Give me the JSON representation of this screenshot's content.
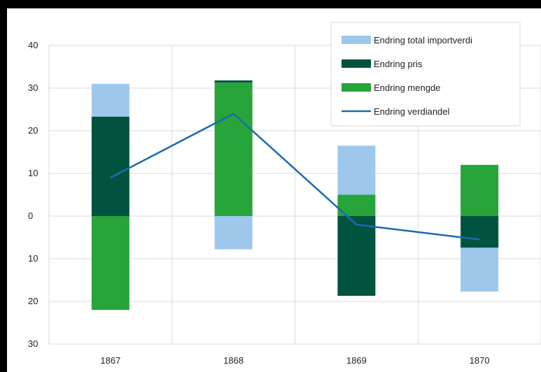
{
  "chart_data": {
    "type": "bar",
    "stacked": true,
    "categories": [
      "1867",
      "1868",
      "1869",
      "1870"
    ],
    "ylim": [
      -30,
      40
    ],
    "y_ticks": [
      40,
      30,
      20,
      10,
      0,
      -10,
      -20,
      -30
    ],
    "y_tick_labels": [
      "40",
      "30",
      "20",
      "10",
      "0",
      "10",
      "20",
      "30"
    ],
    "grid": true,
    "legend_position": "top-right",
    "series": [
      {
        "name": "Endring total importverdi",
        "kind": "bar",
        "color": "#9DC8EB",
        "segments": [
          [
            23.3,
            31.0
          ],
          [
            -7.8,
            0
          ],
          [
            5.0,
            16.5
          ],
          [
            -17.7,
            -7.4
          ]
        ]
      },
      {
        "name": "Endring pris",
        "kind": "bar",
        "color": "#00533F",
        "segments": [
          [
            0,
            23.3
          ],
          [
            31.3,
            31.8
          ],
          [
            -18.7,
            0
          ],
          [
            -7.4,
            0
          ]
        ]
      },
      {
        "name": "Endring mengde",
        "kind": "bar",
        "color": "#27A43A",
        "segments": [
          [
            -22.0,
            0
          ],
          [
            0,
            31.3
          ],
          [
            0,
            5.0
          ],
          [
            0,
            12.0
          ]
        ]
      },
      {
        "name": "Endring verdiandel",
        "kind": "line",
        "color": "#1B6BB0",
        "values": [
          9.0,
          24.0,
          -2.0,
          -5.5
        ]
      }
    ]
  }
}
